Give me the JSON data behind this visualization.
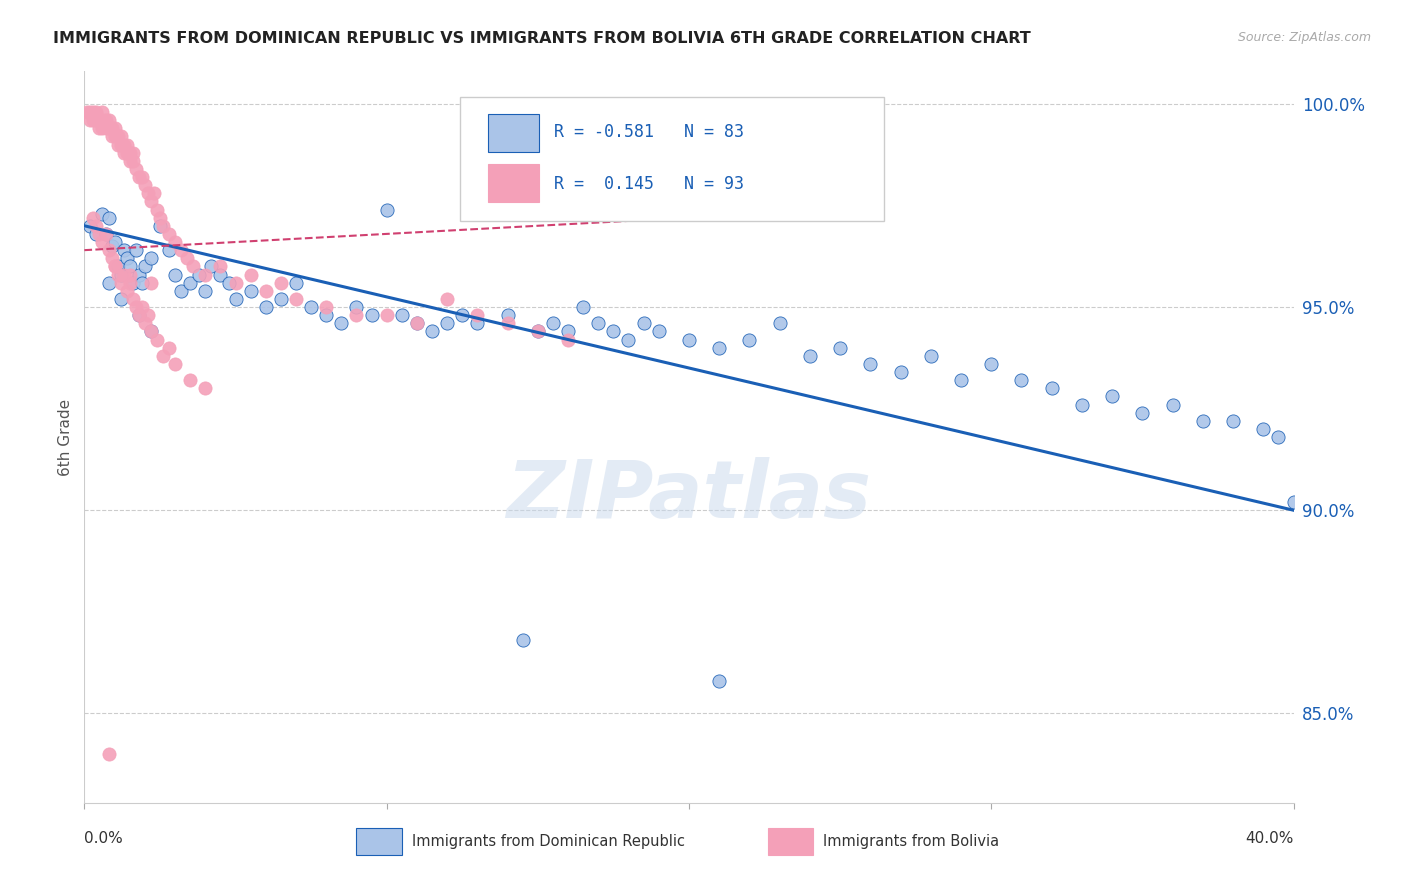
{
  "title": "IMMIGRANTS FROM DOMINICAN REPUBLIC VS IMMIGRANTS FROM BOLIVIA 6TH GRADE CORRELATION CHART",
  "source": "Source: ZipAtlas.com",
  "ylabel": "6th Grade",
  "yticks": [
    0.85,
    0.9,
    0.95,
    1.0
  ],
  "ytick_labels": [
    "85.0%",
    "90.0%",
    "95.0%",
    "100.0%"
  ],
  "xmin": 0.0,
  "xmax": 0.4,
  "ymin": 0.828,
  "ymax": 1.008,
  "blue_R": "-0.581",
  "blue_N": "83",
  "pink_R": "0.145",
  "pink_N": "93",
  "blue_color": "#aac4e8",
  "pink_color": "#f4a0b8",
  "blue_line_color": "#1a5fb5",
  "pink_line_color": "#d04070",
  "legend_label_blue": "Immigrants from Dominican Republic",
  "legend_label_pink": "Immigrants from Bolivia",
  "watermark": "ZIPatlas",
  "blue_scatter_x": [
    0.002,
    0.004,
    0.006,
    0.007,
    0.008,
    0.009,
    0.01,
    0.011,
    0.012,
    0.013,
    0.014,
    0.015,
    0.016,
    0.017,
    0.018,
    0.019,
    0.02,
    0.022,
    0.025,
    0.028,
    0.03,
    0.032,
    0.035,
    0.038,
    0.04,
    0.042,
    0.045,
    0.048,
    0.05,
    0.055,
    0.06,
    0.065,
    0.07,
    0.075,
    0.08,
    0.085,
    0.09,
    0.095,
    0.1,
    0.105,
    0.11,
    0.115,
    0.12,
    0.125,
    0.13,
    0.14,
    0.15,
    0.155,
    0.16,
    0.165,
    0.17,
    0.175,
    0.18,
    0.185,
    0.19,
    0.2,
    0.21,
    0.22,
    0.23,
    0.24,
    0.25,
    0.26,
    0.27,
    0.28,
    0.29,
    0.3,
    0.31,
    0.32,
    0.33,
    0.34,
    0.35,
    0.36,
    0.37,
    0.38,
    0.39,
    0.395,
    0.4,
    0.145,
    0.21,
    0.008,
    0.012,
    0.018,
    0.022
  ],
  "blue_scatter_y": [
    0.97,
    0.968,
    0.973,
    0.968,
    0.972,
    0.965,
    0.966,
    0.96,
    0.958,
    0.964,
    0.962,
    0.96,
    0.956,
    0.964,
    0.958,
    0.956,
    0.96,
    0.962,
    0.97,
    0.964,
    0.958,
    0.954,
    0.956,
    0.958,
    0.954,
    0.96,
    0.958,
    0.956,
    0.952,
    0.954,
    0.95,
    0.952,
    0.956,
    0.95,
    0.948,
    0.946,
    0.95,
    0.948,
    0.974,
    0.948,
    0.946,
    0.944,
    0.946,
    0.948,
    0.946,
    0.948,
    0.944,
    0.946,
    0.944,
    0.95,
    0.946,
    0.944,
    0.942,
    0.946,
    0.944,
    0.942,
    0.94,
    0.942,
    0.946,
    0.938,
    0.94,
    0.936,
    0.934,
    0.938,
    0.932,
    0.936,
    0.932,
    0.93,
    0.926,
    0.928,
    0.924,
    0.926,
    0.922,
    0.922,
    0.92,
    0.918,
    0.902,
    0.868,
    0.858,
    0.956,
    0.952,
    0.948,
    0.944
  ],
  "pink_scatter_x": [
    0.001,
    0.002,
    0.002,
    0.003,
    0.003,
    0.004,
    0.004,
    0.005,
    0.005,
    0.006,
    0.006,
    0.006,
    0.007,
    0.007,
    0.008,
    0.008,
    0.009,
    0.009,
    0.01,
    0.01,
    0.011,
    0.011,
    0.012,
    0.012,
    0.013,
    0.013,
    0.014,
    0.014,
    0.015,
    0.015,
    0.016,
    0.016,
    0.017,
    0.018,
    0.019,
    0.02,
    0.021,
    0.022,
    0.023,
    0.024,
    0.025,
    0.026,
    0.028,
    0.03,
    0.032,
    0.034,
    0.036,
    0.04,
    0.045,
    0.05,
    0.055,
    0.06,
    0.065,
    0.07,
    0.08,
    0.09,
    0.1,
    0.11,
    0.12,
    0.13,
    0.14,
    0.15,
    0.16,
    0.003,
    0.004,
    0.005,
    0.006,
    0.007,
    0.008,
    0.009,
    0.01,
    0.011,
    0.012,
    0.013,
    0.014,
    0.015,
    0.016,
    0.017,
    0.018,
    0.019,
    0.02,
    0.021,
    0.022,
    0.024,
    0.026,
    0.028,
    0.03,
    0.035,
    0.04,
    0.01,
    0.015,
    0.022,
    0.008
  ],
  "pink_scatter_y": [
    0.998,
    0.998,
    0.996,
    0.998,
    0.996,
    0.998,
    0.996,
    0.996,
    0.994,
    0.998,
    0.996,
    0.994,
    0.996,
    0.994,
    0.996,
    0.994,
    0.992,
    0.994,
    0.992,
    0.994,
    0.992,
    0.99,
    0.99,
    0.992,
    0.99,
    0.988,
    0.988,
    0.99,
    0.988,
    0.986,
    0.988,
    0.986,
    0.984,
    0.982,
    0.982,
    0.98,
    0.978,
    0.976,
    0.978,
    0.974,
    0.972,
    0.97,
    0.968,
    0.966,
    0.964,
    0.962,
    0.96,
    0.958,
    0.96,
    0.956,
    0.958,
    0.954,
    0.956,
    0.952,
    0.95,
    0.948,
    0.948,
    0.946,
    0.952,
    0.948,
    0.946,
    0.944,
    0.942,
    0.972,
    0.97,
    0.968,
    0.966,
    0.968,
    0.964,
    0.962,
    0.96,
    0.958,
    0.956,
    0.958,
    0.954,
    0.956,
    0.952,
    0.95,
    0.948,
    0.95,
    0.946,
    0.948,
    0.944,
    0.942,
    0.938,
    0.94,
    0.936,
    0.932,
    0.93,
    0.96,
    0.958,
    0.956,
    0.84
  ]
}
